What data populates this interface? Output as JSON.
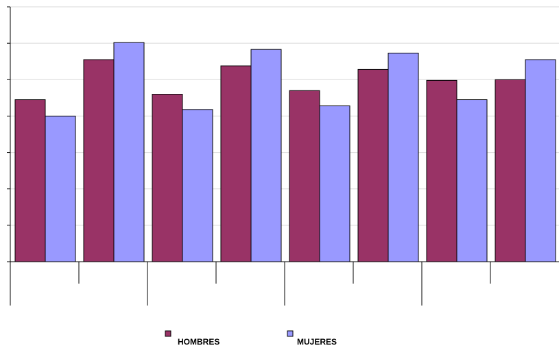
{
  "chart_data": {
    "type": "bar",
    "title": "",
    "xlabel": "",
    "ylabel": "",
    "ylim": [
      0,
      7
    ],
    "categories": [
      "",
      "",
      "",
      "",
      "",
      "",
      "",
      ""
    ],
    "series": [
      {
        "name": "HOMBRES",
        "color": "#993366",
        "values": [
          4.45,
          5.55,
          4.6,
          5.38,
          4.7,
          5.28,
          4.98,
          5.0
        ]
      },
      {
        "name": "MUJERES",
        "color": "#9999ff",
        "values": [
          4.0,
          6.02,
          4.18,
          5.83,
          4.28,
          5.73,
          4.45,
          5.55
        ]
      }
    ],
    "grid": true,
    "legend": "bottom-center"
  }
}
